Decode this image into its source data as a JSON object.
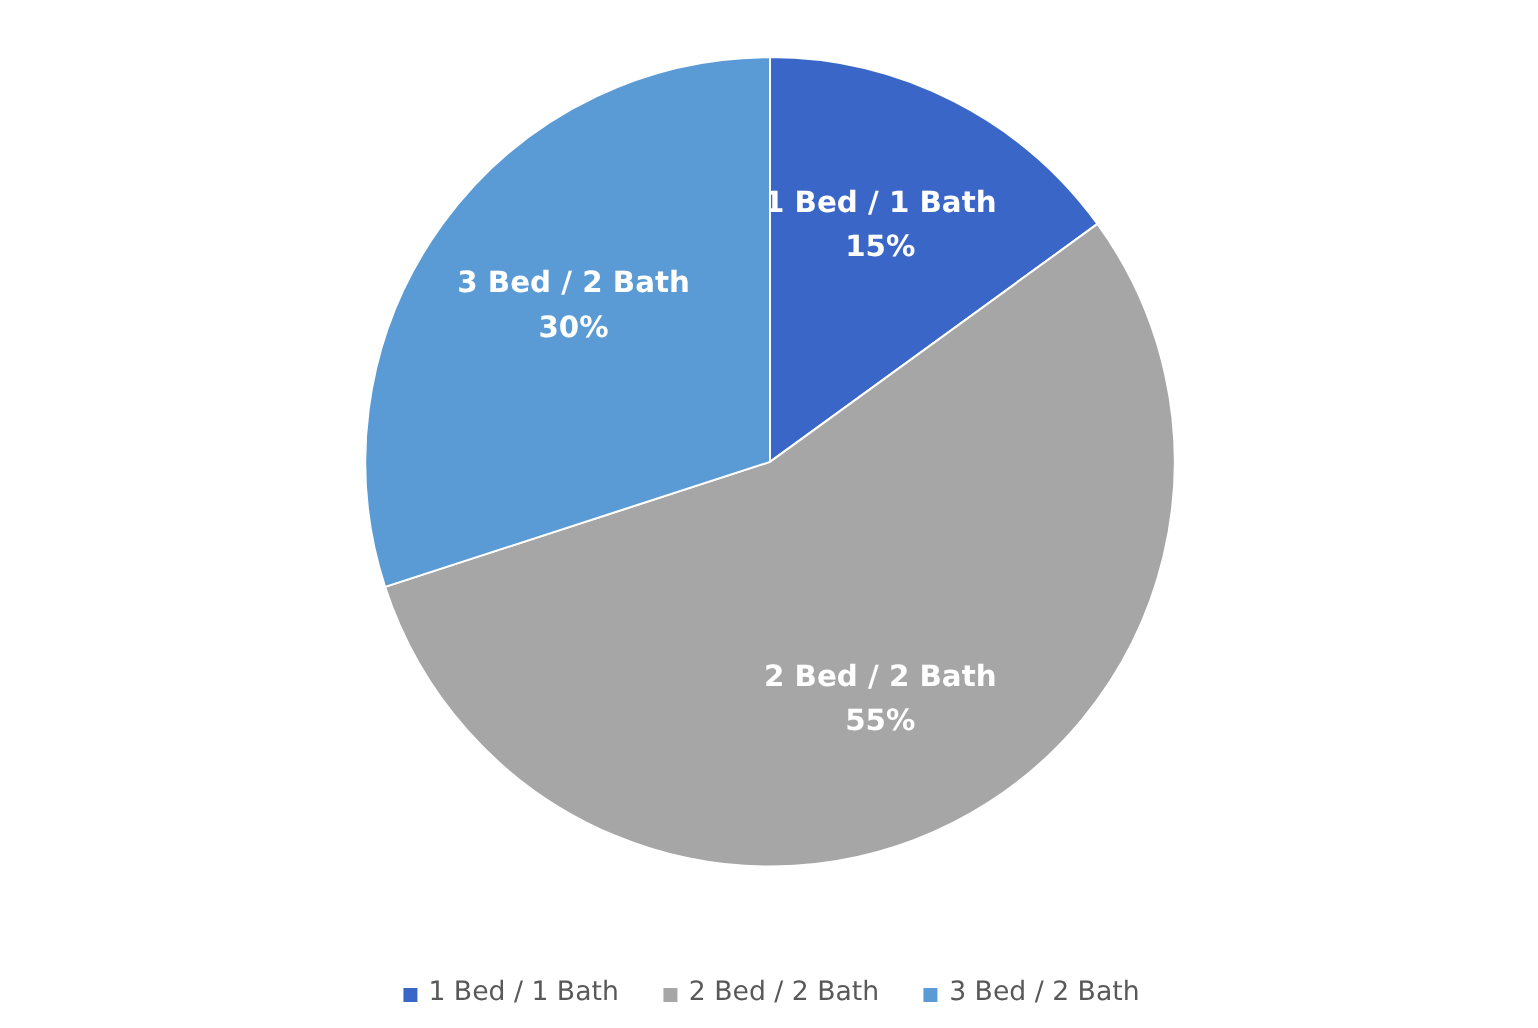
{
  "chart_data": {
    "type": "pie",
    "categories": [
      "1 Bed / 1 Bath",
      "2 Bed / 2 Bath",
      "3 Bed / 2 Bath"
    ],
    "values": [
      15,
      55,
      30
    ],
    "colors": [
      "#3a66c8",
      "#a6a6a6",
      "#5b9bd5"
    ],
    "value_labels": [
      "15%",
      "55%",
      "30%"
    ],
    "legend": "bottom"
  }
}
